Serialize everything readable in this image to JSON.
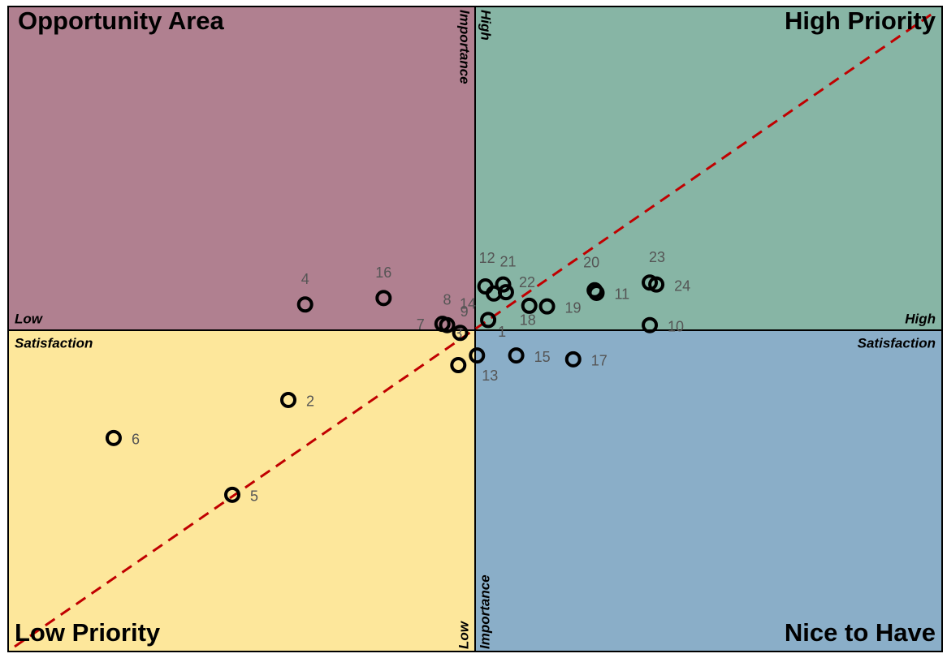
{
  "chart_data": {
    "type": "scatter",
    "quadrant_labels": {
      "top_left": "Opportunity Area",
      "top_right": "High Priority",
      "bottom_left": "Low Priority",
      "bottom_right": "Nice to Have"
    },
    "x_axis": {
      "label": "Satisfaction",
      "low": "Low",
      "high": "High"
    },
    "y_axis": {
      "label": "Importance",
      "low": "Low",
      "high": "High"
    },
    "xlim": [
      0,
      10
    ],
    "ylim": [
      0,
      10
    ],
    "labels": [
      "1",
      "2",
      "3",
      "4",
      "5",
      "6",
      "7",
      "8",
      "9",
      "10",
      "11",
      "12",
      "13",
      "14",
      "15",
      "16",
      "17",
      "18",
      "19",
      "20",
      "21",
      "22",
      "23",
      "24"
    ],
    "x": [
      5.14,
      3.0,
      4.82,
      3.18,
      2.4,
      1.13,
      4.65,
      4.7,
      4.84,
      6.87,
      6.3,
      5.11,
      5.02,
      5.2,
      5.44,
      4.02,
      6.05,
      5.58,
      5.77,
      6.28,
      5.3,
      5.33,
      6.87,
      6.94
    ],
    "y": [
      5.14,
      3.9,
      4.44,
      5.38,
      2.43,
      3.31,
      5.08,
      5.06,
      4.94,
      5.06,
      5.56,
      5.66,
      4.59,
      5.55,
      4.59,
      5.48,
      4.53,
      5.36,
      5.35,
      5.6,
      5.69,
      5.57,
      5.72,
      5.69
    ],
    "color": "#000000",
    "trend_color": "#c00000"
  }
}
